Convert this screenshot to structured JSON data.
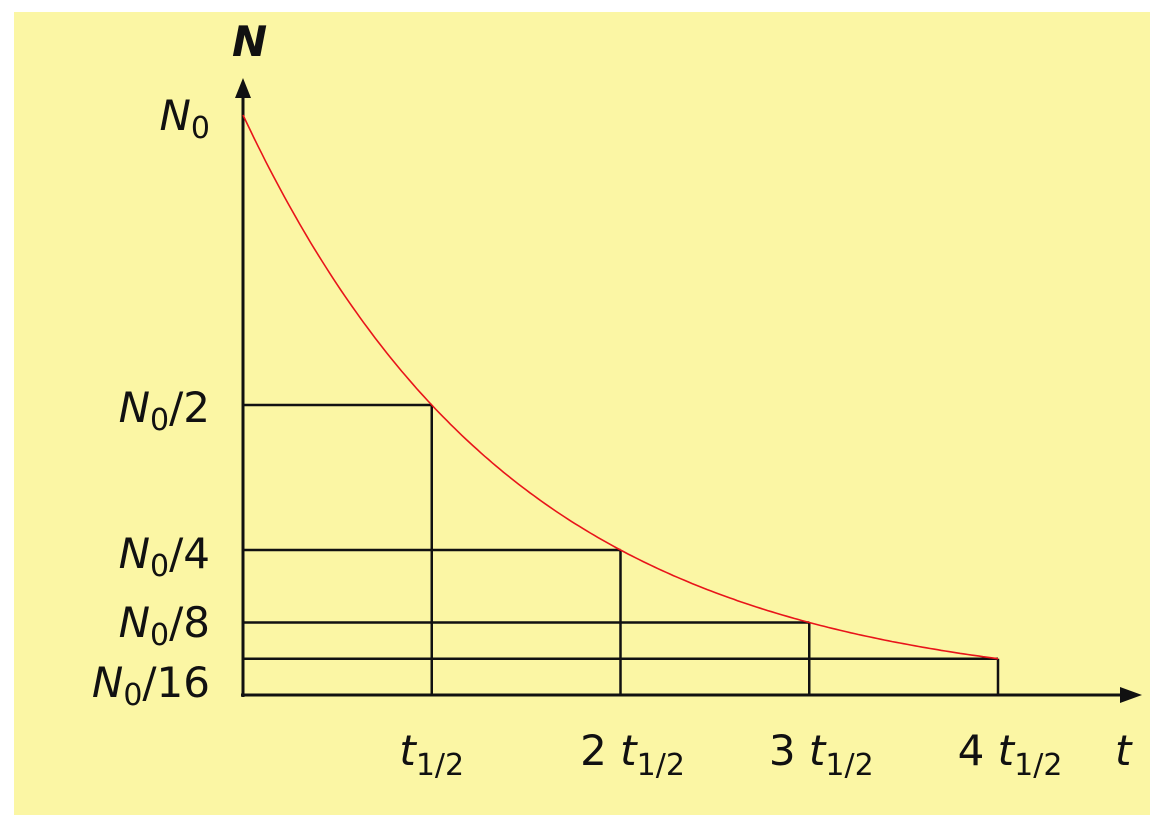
{
  "axes": {
    "y_label": "N",
    "x_label": "t"
  },
  "y_labels": [
    {
      "symbol": "N",
      "subscript": "0"
    },
    {
      "symbol": "N",
      "subscript": "0",
      "suffix": "/2"
    },
    {
      "symbol": "N",
      "subscript": "0",
      "suffix": "/4"
    },
    {
      "symbol": "N",
      "subscript": "0",
      "suffix": "/8"
    },
    {
      "symbol": "N",
      "subscript": "0",
      "suffix": "/16"
    }
  ],
  "x_labels": [
    {
      "symbol": "t",
      "subscript": "1/2"
    },
    {
      "prefix": "2",
      "symbol": "t",
      "subscript": "1/2"
    },
    {
      "prefix": "3",
      "symbol": "t",
      "subscript": "1/2"
    },
    {
      "prefix": "4",
      "symbol": "t",
      "subscript": "1/2"
    }
  ]
}
